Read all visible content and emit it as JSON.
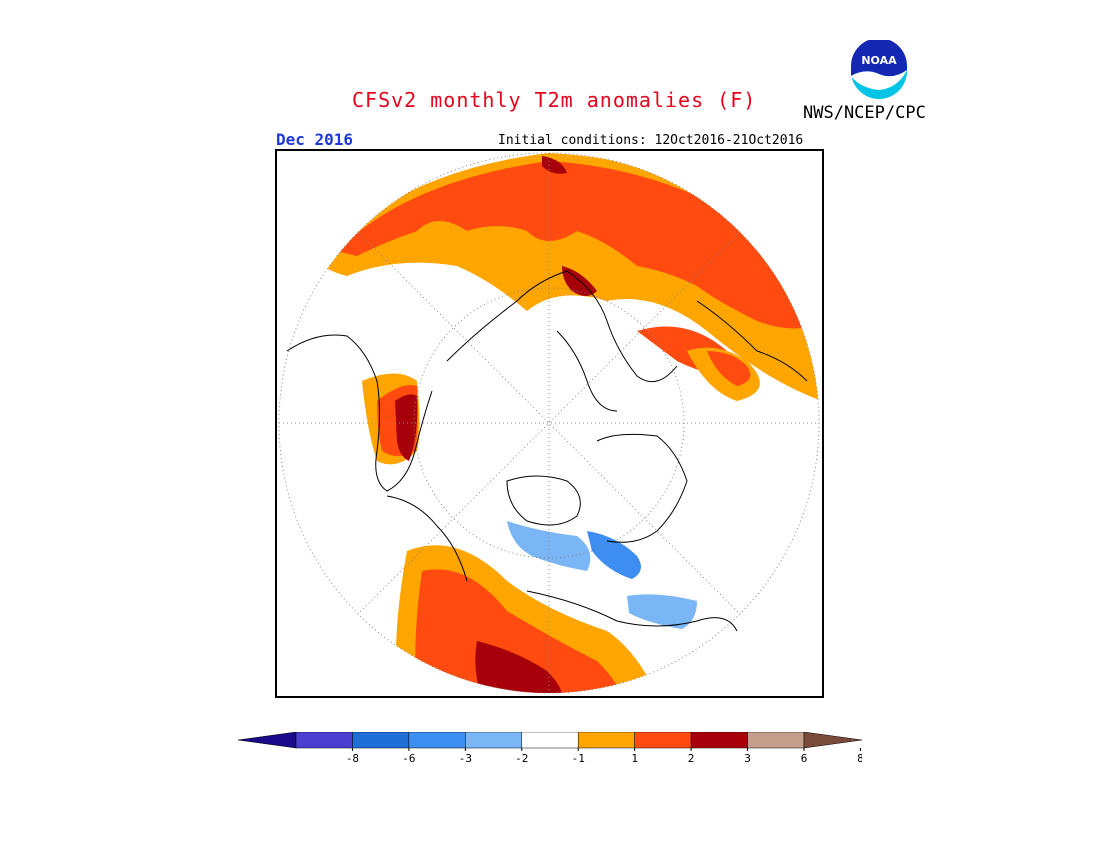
{
  "title": "CFSv2 monthly T2m anomalies (F)",
  "agency": "NWS/NCEP/CPC",
  "logo": {
    "text": "NOAA"
  },
  "month_label": "Dec 2016",
  "initial_conditions": "Initial conditions: 12Oct2016-21Oct2016",
  "colorbar": {
    "bins": [
      {
        "color": "#1b0a8a"
      },
      {
        "color": "#4a3fd0"
      },
      {
        "color": "#1f6fd6"
      },
      {
        "color": "#3d8ef0"
      },
      {
        "color": "#7ab6f5"
      },
      {
        "color": "#ffffff"
      },
      {
        "color": "#ffa500"
      },
      {
        "color": "#ff4a10"
      },
      {
        "color": "#a8000a"
      },
      {
        "color": "#c4a08c"
      },
      {
        "color": "#7a4a3a"
      }
    ],
    "ticks": [
      "-8",
      "-6",
      "-3",
      "-2",
      "-1",
      "1",
      "2",
      "3",
      "6",
      "8"
    ]
  },
  "colors": {
    "title": "#e8001c",
    "month": "#1d3ad8",
    "coastline": "#000000",
    "graticule": "#888888"
  }
}
